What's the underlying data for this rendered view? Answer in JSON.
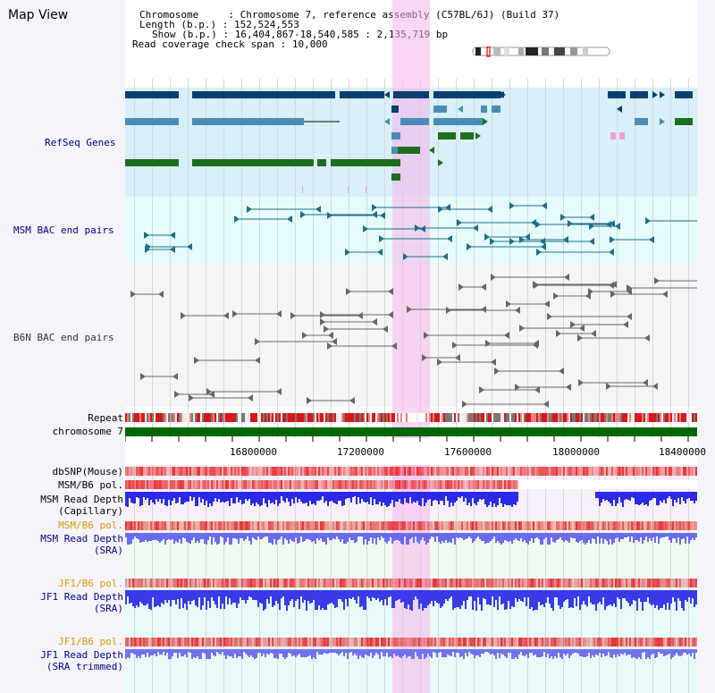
{
  "app": {
    "title": "Map View"
  },
  "header": {
    "chromosome_label": "Chromosome",
    "chromosome_value": "Chromosome 7, reference assembly (C57BL/6J) (Build 37)",
    "length_label": "Length (b.p.)",
    "length_value": "152,524,553",
    "show_label": "Show (b.p.)",
    "show_value": "16,404,867-18,540,585 : 2,135,719 bp",
    "span_label": "Read coverage check span",
    "span_value": "10,000"
  },
  "tracks": {
    "refseq": "RefSeq Genes",
    "msm_bac": "MSM BAC end pairs",
    "b6n_bac": "B6N BAC end pairs",
    "repeat": "Repeat",
    "chromosome": "chromosome 7",
    "dbsnp": "dbSNP(Mouse)",
    "msm_b6_pol_1": "MSM/B6 pol.",
    "msm_depth_cap_1": "MSM Read Depth",
    "msm_depth_cap_2": "(Capillary)",
    "msm_b6_pol_2": "MSM/B6 pol.",
    "msm_depth_sra_1": "MSM Read Depth",
    "msm_depth_sra_2": "(SRA)",
    "jf1_b6_pol_1": "JF1/B6 pol.",
    "jf1_depth_sra_1": "JF1 Read Depth",
    "jf1_depth_sra_2": "(SRA)",
    "jf1_b6_pol_2": "JF1/B6 pol.",
    "jf1_depth_trim_1": "JF1 Read Depth",
    "jf1_depth_trim_2": "(SRA trimmed)"
  },
  "axis": {
    "ticks": [
      "16800000",
      "17200000",
      "17600000",
      "18000000",
      "18400000"
    ]
  },
  "colors": {
    "refseq_bg": "#d8f0fa",
    "bac_bg": "#e6fbfb",
    "b6n_bg": "#f5f5f8",
    "dark_blue": "#0b3f70",
    "mid_blue": "#4a8db4",
    "green": "#1e6e1e",
    "highlight": "#f5b4eb",
    "chromosome": "#006600",
    "depth_blue": "#2828e0",
    "depth_light": "#6464f0",
    "label_blue": "#00008b",
    "label_orange": "#e69500"
  }
}
